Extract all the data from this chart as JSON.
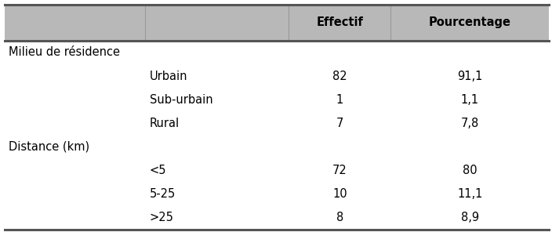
{
  "header_labels": [
    "Effectif",
    "Pourcentage"
  ],
  "rows": [
    {
      "type": "section",
      "label": "Milieu de résidence",
      "effectif": "",
      "pourcentage": ""
    },
    {
      "type": "data",
      "label": "Urbain",
      "effectif": "82",
      "pourcentage": "91,1"
    },
    {
      "type": "data",
      "label": "Sub-urbain",
      "effectif": "1",
      "pourcentage": "1,1"
    },
    {
      "type": "data",
      "label": "Rural",
      "effectif": "7",
      "pourcentage": "7,8"
    },
    {
      "type": "section",
      "label": "Distance (km)",
      "effectif": "",
      "pourcentage": ""
    },
    {
      "type": "data",
      "label": "<5",
      "effectif": "72",
      "pourcentage": "80"
    },
    {
      "type": "data",
      "label": "5-25",
      "effectif": "10",
      "pourcentage": "11,1"
    },
    {
      "type": "data",
      "label": ">25",
      "effectif": "8",
      "pourcentage": "8,9"
    }
  ],
  "header_bg": "#b8b8b8",
  "font_size": 10.5,
  "header_font_size": 10.5
}
